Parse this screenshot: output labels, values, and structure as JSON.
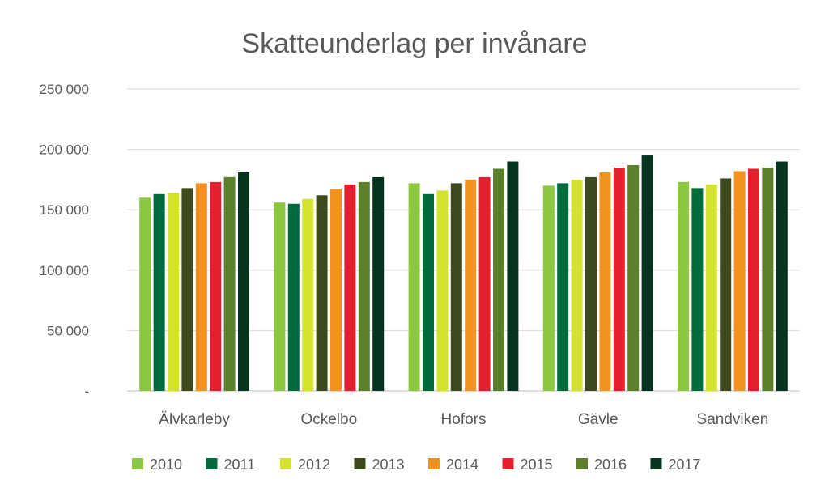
{
  "chart_data": {
    "type": "bar",
    "title": "Skatteunderlag per invånare",
    "xlabel": "",
    "ylabel": "",
    "ylim": [
      0,
      250000
    ],
    "yticks": [
      0,
      50000,
      100000,
      150000,
      200000,
      250000
    ],
    "ytick_labels": [
      "-",
      "50 000",
      "100 000",
      "150 000",
      "200 000",
      "250 000"
    ],
    "grid": true,
    "legend_position": "bottom",
    "categories": [
      "Älvkarleby",
      "Ockelbo",
      "Hofors",
      "Gävle",
      "Sandviken"
    ],
    "series": [
      {
        "name": "2010",
        "color": "#8DC63F",
        "values": [
          160000,
          156000,
          172000,
          170000,
          173000
        ]
      },
      {
        "name": "2011",
        "color": "#006B3C",
        "values": [
          163000,
          155000,
          163000,
          172000,
          168000
        ]
      },
      {
        "name": "2012",
        "color": "#D4E12E",
        "values": [
          164000,
          159000,
          166000,
          175000,
          171000
        ]
      },
      {
        "name": "2013",
        "color": "#3D4A1E",
        "values": [
          168000,
          162000,
          172000,
          177000,
          176000
        ]
      },
      {
        "name": "2014",
        "color": "#F39220",
        "values": [
          172000,
          167000,
          175000,
          181000,
          182000
        ]
      },
      {
        "name": "2015",
        "color": "#E31E2D",
        "values": [
          173000,
          171000,
          177000,
          185000,
          184000
        ]
      },
      {
        "name": "2016",
        "color": "#5B7F2A",
        "values": [
          177000,
          173000,
          184000,
          187000,
          185000
        ]
      },
      {
        "name": "2017",
        "color": "#06331E",
        "values": [
          181000,
          177000,
          190000,
          195000,
          190000
        ]
      }
    ]
  }
}
